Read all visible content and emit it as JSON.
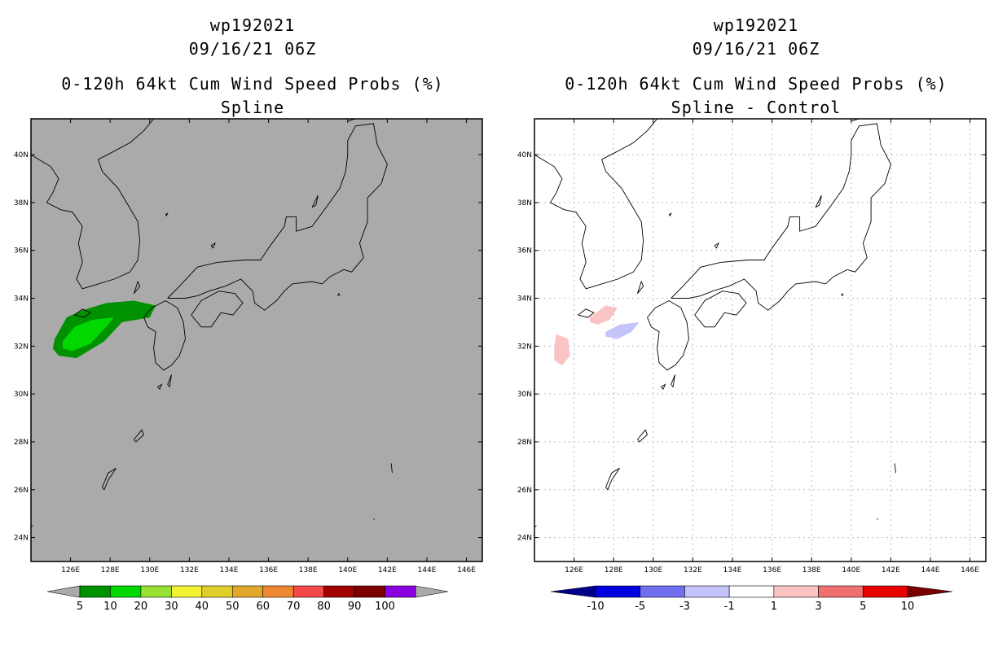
{
  "chart_data": [
    {
      "type": "heatmap",
      "title_lines": [
        "wp192021",
        "09/16/21 06Z"
      ],
      "subtitle_lines": [
        "0-120h 64kt Cum Wind Speed Probs (%)",
        "Spline"
      ],
      "lon_ticks": [
        "126E",
        "128E",
        "130E",
        "132E",
        "134E",
        "136E",
        "138E",
        "140E",
        "142E",
        "144E",
        "146E"
      ],
      "lat_ticks": [
        "24N",
        "26N",
        "28N",
        "30N",
        "32N",
        "34N",
        "36N",
        "38N",
        "40N"
      ],
      "xlim": [
        124.0,
        146.8
      ],
      "ylim": [
        23.0,
        41.5
      ],
      "background_color": "#aaaaaa",
      "grid": false,
      "colorbar": {
        "labels": [
          "5",
          "10",
          "20",
          "30",
          "40",
          "50",
          "60",
          "70",
          "80",
          "90",
          "100"
        ],
        "colors": [
          "#009100",
          "#00d800",
          "#98e033",
          "#f2f233",
          "#e0cf2a",
          "#e0a82a",
          "#ee8833",
          "#f2484a",
          "#a00000",
          "#7b0000",
          "#8a00e0"
        ],
        "end_colors": [
          "#aaaaaa",
          "#aaaaaa"
        ]
      },
      "shaded_regions": [
        {
          "level": "5-10",
          "color": "#009100",
          "polygon": [
            [
              125.2,
              32.3
            ],
            [
              125.8,
              33.2
            ],
            [
              126.6,
              33.5
            ],
            [
              127.8,
              33.8
            ],
            [
              129.2,
              33.9
            ],
            [
              130.3,
              33.7
            ],
            [
              130.0,
              33.2
            ],
            [
              128.6,
              33.0
            ],
            [
              127.7,
              32.2
            ],
            [
              126.3,
              31.5
            ],
            [
              125.4,
              31.6
            ],
            [
              125.1,
              31.9
            ]
          ]
        },
        {
          "level": "10-20",
          "color": "#00d800",
          "polygon": [
            [
              125.6,
              32.2
            ],
            [
              126.2,
              32.8
            ],
            [
              127.1,
              33.1
            ],
            [
              128.2,
              33.2
            ],
            [
              127.8,
              32.8
            ],
            [
              127.0,
              32.1
            ],
            [
              126.1,
              31.8
            ],
            [
              125.6,
              31.9
            ]
          ]
        }
      ]
    },
    {
      "type": "heatmap",
      "title_lines": [
        "wp192021",
        "09/16/21 06Z"
      ],
      "subtitle_lines": [
        "0-120h 64kt Cum Wind Speed Probs (%)",
        "Spline - Control"
      ],
      "lon_ticks": [
        "126E",
        "128E",
        "130E",
        "132E",
        "134E",
        "136E",
        "138E",
        "140E",
        "142E",
        "144E",
        "146E"
      ],
      "lat_ticks": [
        "24N",
        "26N",
        "28N",
        "30N",
        "32N",
        "34N",
        "36N",
        "38N",
        "40N"
      ],
      "xlim": [
        124.0,
        146.8
      ],
      "ylim": [
        23.0,
        41.5
      ],
      "background_color": "#ffffff",
      "grid": true,
      "colorbar": {
        "labels": [
          "-10",
          "-5",
          "-3",
          "-1",
          "1",
          "3",
          "5",
          "10"
        ],
        "colors": [
          "#0000e0",
          "#6f6ff0",
          "#c4c4fa",
          "#ffffff",
          "#fac4c4",
          "#f07070",
          "#e80000"
        ],
        "end_colors": [
          "#00008b",
          "#7b0000"
        ]
      },
      "shaded_regions": [
        {
          "level": "1-3",
          "color": "#fac4c4",
          "polygon": [
            [
              126.8,
              33.2
            ],
            [
              127.6,
              33.7
            ],
            [
              128.2,
              33.6
            ],
            [
              127.8,
              33.1
            ],
            [
              127.2,
              32.9
            ],
            [
              126.8,
              33.0
            ]
          ]
        },
        {
          "level": "1-3",
          "color": "#fac4c4",
          "polygon": [
            [
              125.0,
              32.0
            ],
            [
              125.1,
              32.5
            ],
            [
              125.7,
              32.3
            ],
            [
              125.8,
              31.6
            ],
            [
              125.4,
              31.2
            ],
            [
              125.0,
              31.4
            ]
          ]
        },
        {
          "level": "-3--1",
          "color": "#c4c4fa",
          "polygon": [
            [
              127.6,
              32.6
            ],
            [
              128.3,
              32.9
            ],
            [
              129.3,
              33.0
            ],
            [
              128.9,
              32.6
            ],
            [
              128.2,
              32.3
            ],
            [
              127.6,
              32.4
            ]
          ]
        }
      ]
    }
  ]
}
